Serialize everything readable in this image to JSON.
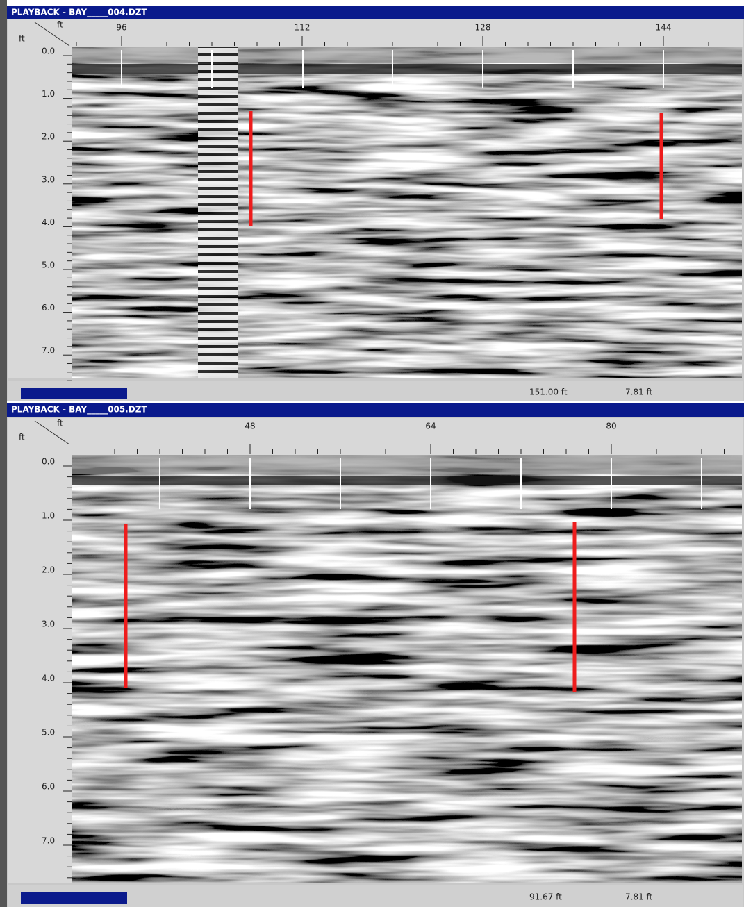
{
  "windows": [
    {
      "title": "PLAYBACK - BAY_____004.DZT",
      "x_unit": "ft",
      "y_unit": "ft",
      "x_tick_labels": [
        "96",
        "112",
        "128",
        "144"
      ],
      "depth_labels": [
        "0.0",
        "1.0",
        "2.0",
        "3.0",
        "4.0",
        "5.0",
        "6.0",
        "7.0"
      ],
      "status": {
        "distance": "151.00 ft",
        "depth": "7.81 ft"
      }
    },
    {
      "title": "PLAYBACK - BAY_____005.DZT",
      "x_unit": "ft",
      "y_unit": "ft",
      "x_tick_labels": [
        "48",
        "64",
        "80"
      ],
      "depth_labels": [
        "0.0",
        "1.0",
        "2.0",
        "3.0",
        "4.0",
        "5.0",
        "6.0",
        "7.0"
      ],
      "status": {
        "distance": "91.67 ft",
        "depth": "7.81 ft"
      }
    }
  ]
}
